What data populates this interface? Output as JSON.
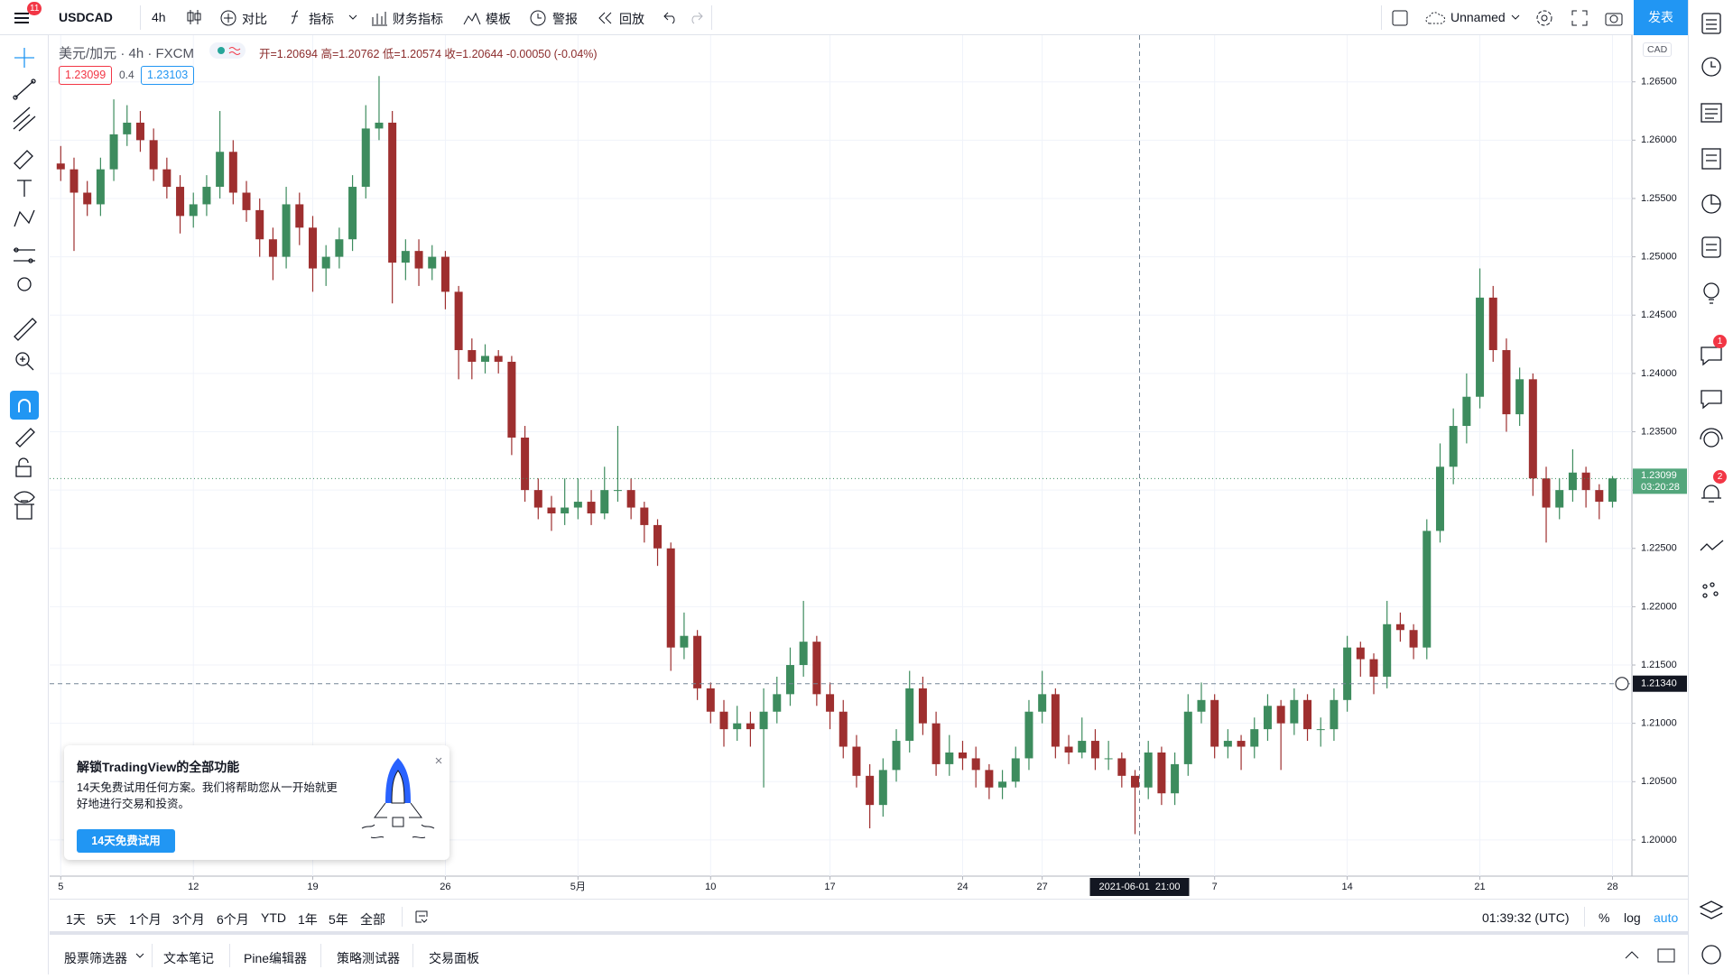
{
  "toolbar": {
    "symbol": "USDCAD",
    "interval": "4h",
    "buttons": [
      "对比",
      "指标",
      "财务指标",
      "模板",
      "警报",
      "回放"
    ],
    "layout_name": "Unnamed",
    "publish": "发表",
    "menu_badge": "11"
  },
  "legend": {
    "title": "美元/加元 · 4h · FXCM",
    "ohlc": "开=1.20694 高=1.20762 低=1.20574 收=1.20644 -0.00050 (-0.04%)",
    "bid": "1.23099",
    "spread": "0.4",
    "ask": "1.23103"
  },
  "chart_data": {
    "type": "candlestick",
    "currency": "CAD",
    "up_color": "#3d8c5e",
    "down_color": "#9e2f2f",
    "grid": true,
    "categories": [
      "5",
      null,
      null,
      null,
      null,
      null,
      null,
      null,
      null,
      null,
      "12",
      null,
      null,
      null,
      null,
      null,
      null,
      null,
      null,
      "19",
      null,
      null,
      null,
      null,
      null,
      null,
      null,
      null,
      null,
      "26",
      null,
      null,
      null,
      null,
      null,
      null,
      null,
      null,
      null,
      "5月",
      null,
      null,
      null,
      null,
      null,
      null,
      null,
      null,
      null,
      "10",
      null,
      null,
      null,
      null,
      null,
      null,
      null,
      null,
      "17",
      null,
      null,
      null,
      null,
      null,
      null,
      null,
      null,
      null,
      "24",
      null,
      null,
      null,
      null,
      null,
      "27",
      null,
      null,
      null,
      null,
      null,
      null,
      null,
      null,
      null,
      null,
      null,
      null,
      "7",
      null,
      null,
      null,
      null,
      null,
      null,
      null,
      null,
      null,
      "14",
      null,
      null,
      null,
      null,
      null,
      null,
      null,
      null,
      null,
      "21",
      null,
      null,
      null,
      null,
      null,
      null,
      null,
      null,
      null,
      "28"
    ],
    "ohlc": [
      [
        1.258,
        1.2595,
        1.2565,
        1.2575
      ],
      [
        1.2575,
        1.2585,
        1.2505,
        1.2555
      ],
      [
        1.2555,
        1.2565,
        1.2535,
        1.2545
      ],
      [
        1.2545,
        1.2585,
        1.2535,
        1.2575
      ],
      [
        1.2575,
        1.2635,
        1.2565,
        1.2605
      ],
      [
        1.2605,
        1.263,
        1.2595,
        1.2615
      ],
      [
        1.2615,
        1.2625,
        1.259,
        1.26
      ],
      [
        1.26,
        1.261,
        1.2565,
        1.2575
      ],
      [
        1.2575,
        1.2585,
        1.255,
        1.256
      ],
      [
        1.256,
        1.257,
        1.252,
        1.2535
      ],
      [
        1.2535,
        1.2555,
        1.2525,
        1.2545
      ],
      [
        1.2545,
        1.257,
        1.2535,
        1.256
      ],
      [
        1.256,
        1.2625,
        1.255,
        1.259
      ],
      [
        1.259,
        1.26,
        1.2545,
        1.2555
      ],
      [
        1.2555,
        1.2565,
        1.253,
        1.254
      ],
      [
        1.254,
        1.255,
        1.25,
        1.2515
      ],
      [
        1.2515,
        1.2525,
        1.248,
        1.25
      ],
      [
        1.25,
        1.256,
        1.249,
        1.2545
      ],
      [
        1.2545,
        1.2555,
        1.251,
        1.2525
      ],
      [
        1.2525,
        1.2535,
        1.247,
        1.249
      ],
      [
        1.249,
        1.251,
        1.2475,
        1.25
      ],
      [
        1.25,
        1.2525,
        1.249,
        1.2515
      ],
      [
        1.2515,
        1.257,
        1.2505,
        1.256
      ],
      [
        1.256,
        1.263,
        1.255,
        1.261
      ],
      [
        1.261,
        1.2655,
        1.26,
        1.2615
      ],
      [
        1.2615,
        1.2625,
        1.246,
        1.2495
      ],
      [
        1.2495,
        1.2515,
        1.248,
        1.2505
      ],
      [
        1.2505,
        1.2515,
        1.2475,
        1.249
      ],
      [
        1.249,
        1.251,
        1.248,
        1.25
      ],
      [
        1.25,
        1.2505,
        1.2455,
        1.247
      ],
      [
        1.247,
        1.2475,
        1.2395,
        1.242
      ],
      [
        1.242,
        1.243,
        1.2395,
        1.241
      ],
      [
        1.241,
        1.2425,
        1.24,
        1.2415
      ],
      [
        1.2415,
        1.242,
        1.24,
        1.241
      ],
      [
        1.241,
        1.2415,
        1.233,
        1.2345
      ],
      [
        1.2345,
        1.2355,
        1.229,
        1.23
      ],
      [
        1.23,
        1.231,
        1.2275,
        1.2285
      ],
      [
        1.2285,
        1.2295,
        1.2265,
        1.228
      ],
      [
        1.228,
        1.231,
        1.227,
        1.2285
      ],
      [
        1.2285,
        1.231,
        1.2275,
        1.229
      ],
      [
        1.229,
        1.23,
        1.227,
        1.228
      ],
      [
        1.228,
        1.232,
        1.2275,
        1.23
      ],
      [
        1.23,
        1.2355,
        1.229,
        1.23
      ],
      [
        1.23,
        1.231,
        1.2275,
        1.2285
      ],
      [
        1.2285,
        1.229,
        1.2255,
        1.227
      ],
      [
        1.227,
        1.2275,
        1.2235,
        1.225
      ],
      [
        1.225,
        1.2255,
        1.2145,
        1.2165
      ],
      [
        1.2165,
        1.2195,
        1.2155,
        1.2175
      ],
      [
        1.2175,
        1.218,
        1.212,
        1.213
      ],
      [
        1.213,
        1.2135,
        1.21,
        1.211
      ],
      [
        1.211,
        1.212,
        1.208,
        1.2095
      ],
      [
        1.2095,
        1.2115,
        1.2085,
        1.21
      ],
      [
        1.21,
        1.211,
        1.208,
        1.2095
      ],
      [
        1.2095,
        1.213,
        1.2045,
        1.211
      ],
      [
        1.211,
        1.214,
        1.21,
        1.2125
      ],
      [
        1.2125,
        1.2165,
        1.2115,
        1.215
      ],
      [
        1.215,
        1.2205,
        1.214,
        1.217
      ],
      [
        1.217,
        1.2175,
        1.2115,
        1.2125
      ],
      [
        1.2125,
        1.2135,
        1.2095,
        1.211
      ],
      [
        1.211,
        1.212,
        1.207,
        1.208
      ],
      [
        1.208,
        1.209,
        1.2045,
        1.2055
      ],
      [
        1.2055,
        1.2065,
        1.201,
        1.203
      ],
      [
        1.203,
        1.207,
        1.202,
        1.206
      ],
      [
        1.206,
        1.2095,
        1.205,
        1.2085
      ],
      [
        1.2085,
        1.2145,
        1.2075,
        1.213
      ],
      [
        1.213,
        1.214,
        1.209,
        1.21
      ],
      [
        1.21,
        1.211,
        1.2055,
        1.2065
      ],
      [
        1.2065,
        1.209,
        1.2055,
        1.2075
      ],
      [
        1.2075,
        1.2085,
        1.206,
        1.207
      ],
      [
        1.207,
        1.208,
        1.2045,
        1.206
      ],
      [
        1.206,
        1.2065,
        1.2035,
        1.2045
      ],
      [
        1.2045,
        1.206,
        1.2035,
        1.205
      ],
      [
        1.205,
        1.208,
        1.2045,
        1.207
      ],
      [
        1.207,
        1.212,
        1.206,
        1.211
      ],
      [
        1.211,
        1.2145,
        1.21,
        1.2125
      ],
      [
        1.2125,
        1.213,
        1.207,
        1.208
      ],
      [
        1.208,
        1.209,
        1.2065,
        1.2075
      ],
      [
        1.2075,
        1.2105,
        1.207,
        1.2085
      ],
      [
        1.2085,
        1.2095,
        1.206,
        1.207
      ],
      [
        1.207,
        1.2085,
        1.206,
        1.207
      ],
      [
        1.207,
        1.2075,
        1.2045,
        1.2055
      ],
      [
        1.2055,
        1.206,
        1.2005,
        1.2045
      ],
      [
        1.2045,
        1.2085,
        1.2035,
        1.2075
      ],
      [
        1.2075,
        1.208,
        1.203,
        1.204
      ],
      [
        1.204,
        1.2075,
        1.203,
        1.2065
      ],
      [
        1.2065,
        1.2125,
        1.2055,
        1.211
      ],
      [
        1.211,
        1.2135,
        1.21,
        1.212
      ],
      [
        1.212,
        1.2125,
        1.207,
        1.208
      ],
      [
        1.208,
        1.2095,
        1.207,
        1.2085
      ],
      [
        1.2085,
        1.209,
        1.206,
        1.208
      ],
      [
        1.208,
        1.2105,
        1.207,
        1.2095
      ],
      [
        1.2095,
        1.2125,
        1.2085,
        1.2115
      ],
      [
        1.2115,
        1.212,
        1.206,
        1.21
      ],
      [
        1.21,
        1.213,
        1.209,
        1.212
      ],
      [
        1.212,
        1.2125,
        1.2085,
        1.2095
      ],
      [
        1.2095,
        1.2105,
        1.208,
        1.2095
      ],
      [
        1.2095,
        1.213,
        1.2085,
        1.212
      ],
      [
        1.212,
        1.2175,
        1.211,
        1.2165
      ],
      [
        1.2165,
        1.217,
        1.214,
        1.2155
      ],
      [
        1.2155,
        1.216,
        1.2125,
        1.214
      ],
      [
        1.214,
        1.2205,
        1.213,
        1.2185
      ],
      [
        1.2185,
        1.2195,
        1.217,
        1.218
      ],
      [
        1.218,
        1.2185,
        1.2155,
        1.2165
      ],
      [
        1.2165,
        1.2275,
        1.2155,
        1.2265
      ],
      [
        1.2265,
        1.234,
        1.2255,
        1.232
      ],
      [
        1.232,
        1.237,
        1.2305,
        1.2355
      ],
      [
        1.2355,
        1.24,
        1.234,
        1.238
      ],
      [
        1.238,
        1.249,
        1.237,
        1.2465
      ],
      [
        1.2465,
        1.2475,
        1.241,
        1.242
      ],
      [
        1.242,
        1.243,
        1.235,
        1.2365
      ],
      [
        1.2365,
        1.2405,
        1.2355,
        1.2395
      ],
      [
        1.2395,
        1.24,
        1.2295,
        1.231
      ],
      [
        1.231,
        1.232,
        1.2255,
        1.2285
      ],
      [
        1.2285,
        1.231,
        1.2275,
        1.23
      ],
      [
        1.23,
        1.2335,
        1.229,
        1.2315
      ],
      [
        1.2315,
        1.232,
        1.2285,
        1.23
      ],
      [
        1.23,
        1.2305,
        1.2275,
        1.229
      ],
      [
        1.229,
        1.2312,
        1.2285,
        1.231
      ]
    ],
    "ylim": [
      1.1969,
      1.269
    ],
    "yticks": [
      {
        "value": 1.2,
        "label": "1.20000"
      },
      {
        "value": 1.205,
        "label": "1.20500"
      },
      {
        "value": 1.21,
        "label": "1.21000"
      },
      {
        "value": 1.215,
        "label": "1.21500"
      },
      {
        "value": 1.22,
        "label": "1.22000"
      },
      {
        "value": 1.225,
        "label": "1.22500"
      },
      {
        "value": 1.23,
        "label": "1.23000"
      },
      {
        "value": 1.235,
        "label": "1.23500"
      },
      {
        "value": 1.24,
        "label": "1.24000"
      },
      {
        "value": 1.245,
        "label": "1.24500"
      },
      {
        "value": 1.25,
        "label": "1.25000"
      },
      {
        "value": 1.255,
        "label": "1.25500"
      },
      {
        "value": 1.26,
        "label": "1.26000"
      },
      {
        "value": 1.265,
        "label": "1.26500"
      }
    ],
    "last_price": {
      "value": 1.23099,
      "label": "1.23099"
    },
    "countdown": "03:20:28",
    "crosshair": {
      "price": {
        "value": 1.2134,
        "label": "1.21340"
      },
      "time_label": "2021-06-01  21:00"
    }
  },
  "range_bar": {
    "ranges": [
      "1天",
      "5天",
      "1个月",
      "3个月",
      "6个月",
      "YTD",
      "1年",
      "5年",
      "全部"
    ],
    "clock": "01:39:32 (UTC)",
    "percent": "%",
    "log": "log",
    "auto": "auto"
  },
  "bottom_tabs": [
    "股票筛选器",
    "文本笔记",
    "Pine编辑器",
    "策略测试器",
    "交易面板"
  ],
  "promo": {
    "title": "解锁TradingView的全部功能",
    "body": "14天免费试用任何方案。我们将帮助您从一开始就更好地进行交易和投资。",
    "button": "14天免费试用"
  },
  "side_badges": [
    "1",
    "2"
  ]
}
